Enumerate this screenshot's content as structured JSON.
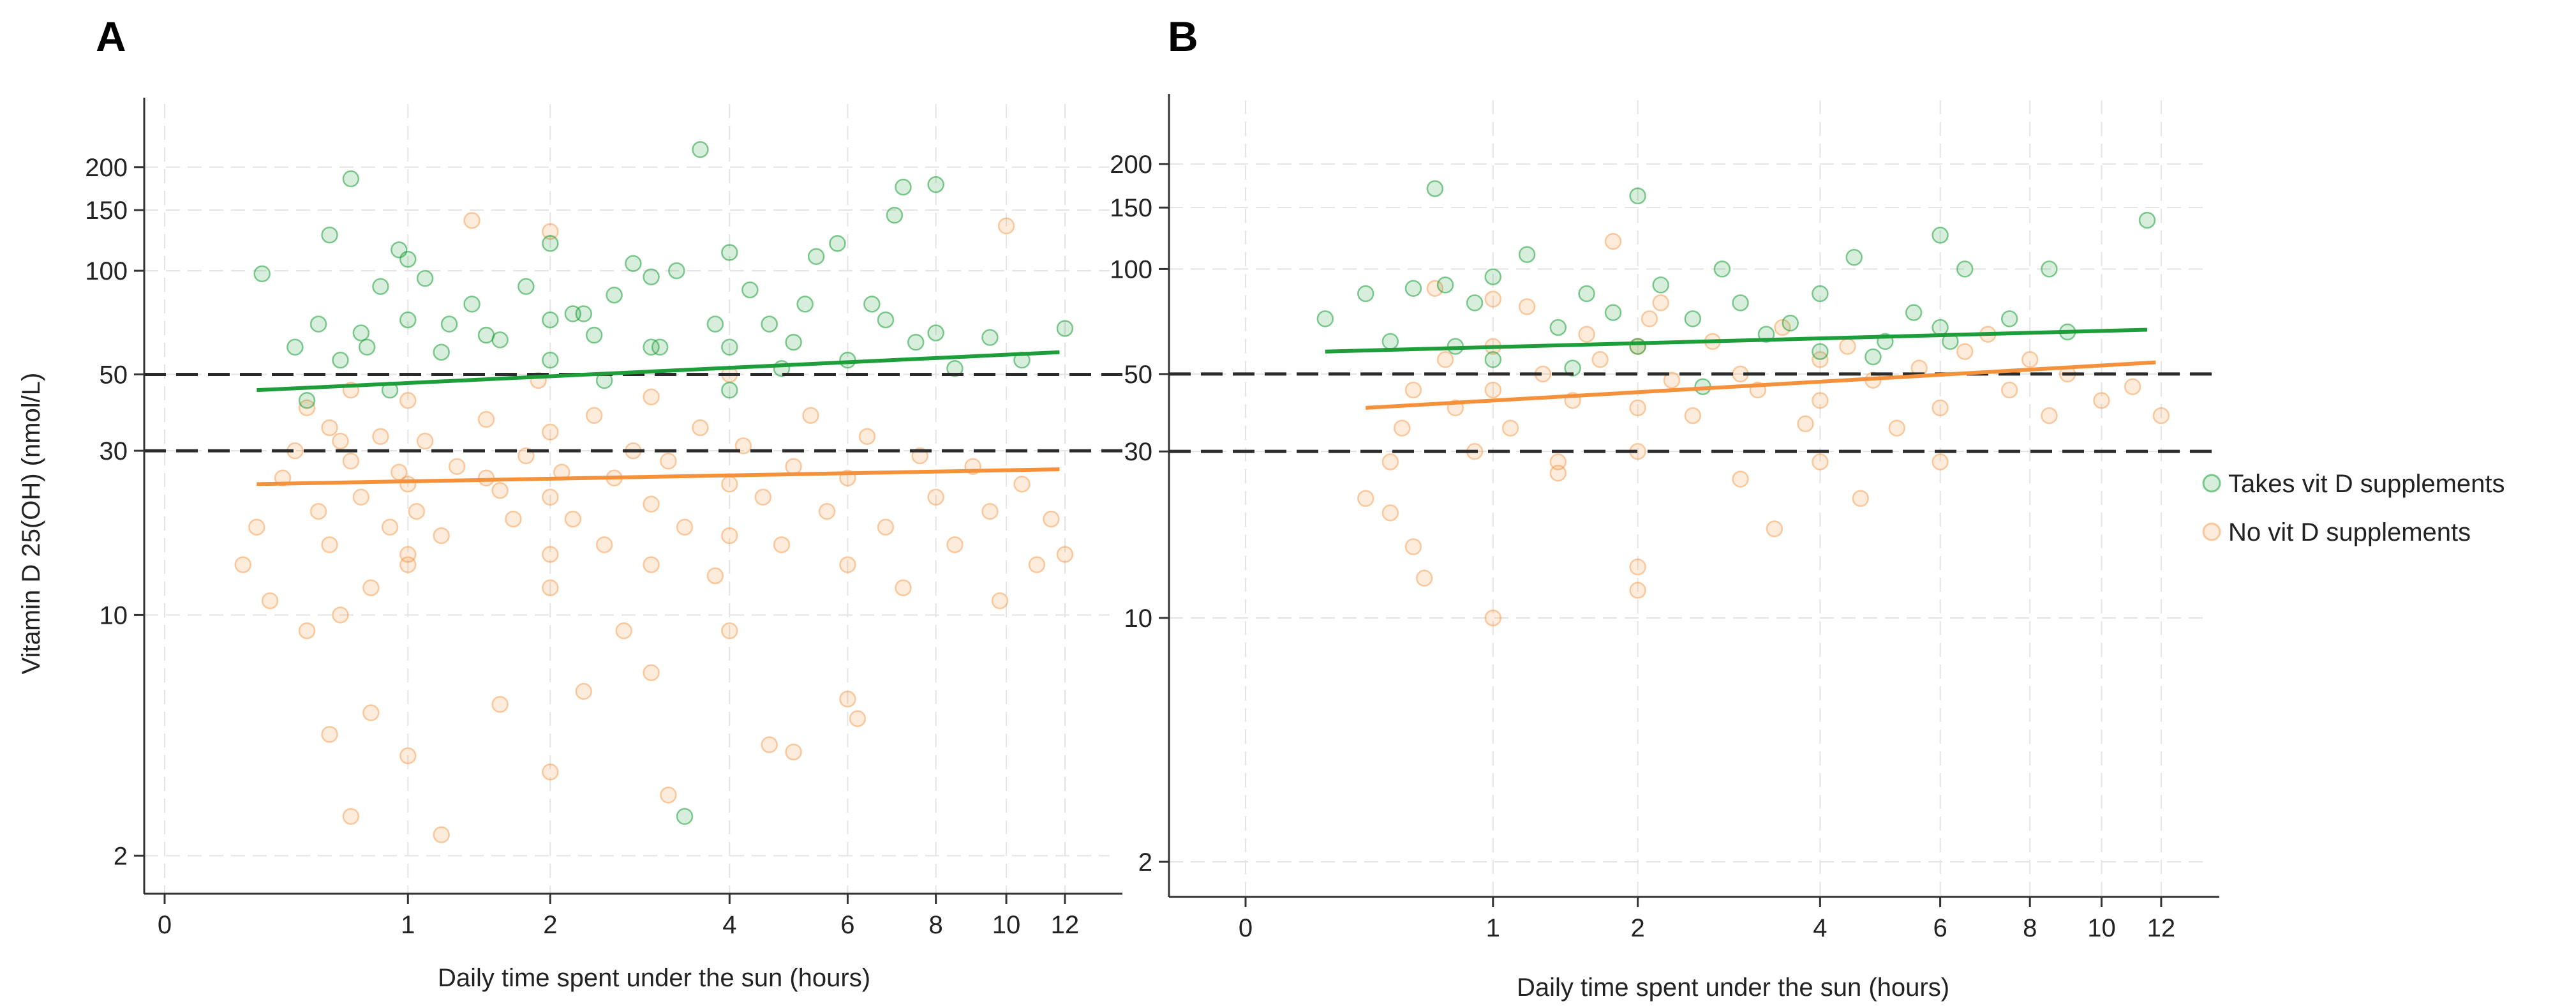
{
  "colors": {
    "supplements": "#1e9e3a",
    "no_supplements": "#f5913a",
    "supplements_point_fill": "rgba(30,158,58,0.18)",
    "supplements_point_stroke": "rgba(30,158,58,0.55)",
    "no_supplements_point_fill": "rgba(245,145,58,0.18)",
    "no_supplements_point_stroke": "rgba(245,145,58,0.45)"
  },
  "legend": [
    {
      "key": "supplements",
      "label": "Takes vit D supplements"
    },
    {
      "key": "no_supplements",
      "label": "No vit D supplements"
    }
  ],
  "chart_data": [
    {
      "panel": "A",
      "type": "scatter",
      "xlabel": "Daily time spent under the sun (hours)",
      "ylabel": "Vitamin D 25(OH) (nmol/L)",
      "x_scale": "log(x+1)",
      "y_scale": "log",
      "xlim": [
        0,
        13.5
      ],
      "ylim": [
        1.8,
        280
      ],
      "x_ticks": [
        "0",
        "1",
        "2",
        "4",
        "6",
        "8",
        "10",
        "12"
      ],
      "y_ticks": [
        "2",
        "10",
        "30",
        "50",
        "100",
        "150",
        "200"
      ],
      "reference_lines_y": [
        50,
        30
      ],
      "grid": true,
      "fit_lines": [
        {
          "series": "supplements",
          "x": [
            0.3,
            11.8
          ],
          "y": [
            45,
            58
          ]
        },
        {
          "series": "no_supplements",
          "x": [
            0.3,
            11.8
          ],
          "y": [
            24,
            26.5
          ]
        }
      ],
      "series": [
        {
          "key": "supplements",
          "name": "Takes vit D supplements",
          "x": [
            0.32,
            0.45,
            0.55,
            0.6,
            0.65,
            0.7,
            0.78,
            0.85,
            0.95,
            1.0,
            1.0,
            1.1,
            1.25,
            1.4,
            1.6,
            1.8,
            2.0,
            2.0,
            2.0,
            2.2,
            2.4,
            2.6,
            2.8,
            3.0,
            3.0,
            3.3,
            3.6,
            3.8,
            4.0,
            4.0,
            4.0,
            4.3,
            4.6,
            5.0,
            5.4,
            5.8,
            6.0,
            6.5,
            7.0,
            7.2,
            7.5,
            8.0,
            8.0,
            8.5,
            9.5,
            10.5,
            12.0,
            3.4,
            2.5,
            1.5,
            0.9,
            4.8,
            5.2,
            6.8,
            0.5,
            3.1,
            2.3,
            1.2,
            0.75
          ],
          "y": [
            98,
            60,
            70,
            127,
            55,
            185,
            60,
            90,
            115,
            108,
            72,
            95,
            70,
            80,
            63,
            90,
            72,
            120,
            55,
            75,
            65,
            85,
            105,
            96,
            60,
            100,
            225,
            70,
            113,
            60,
            45,
            88,
            70,
            62,
            110,
            120,
            55,
            80,
            145,
            175,
            62,
            178,
            66,
            52,
            64,
            55,
            68,
            2.6,
            48,
            65,
            45,
            52,
            80,
            72,
            42,
            60,
            75,
            58,
            66
          ]
        },
        {
          "key": "no_supplements",
          "name": "No vit D supplements",
          "x": [
            0.25,
            0.3,
            0.35,
            0.4,
            0.45,
            0.5,
            0.5,
            0.55,
            0.6,
            0.6,
            0.65,
            0.7,
            0.7,
            0.75,
            0.8,
            0.85,
            0.9,
            0.95,
            1.0,
            1.0,
            1.0,
            1.0,
            1.05,
            1.1,
            1.2,
            1.3,
            1.4,
            1.5,
            1.6,
            1.7,
            1.8,
            1.9,
            2.0,
            2.0,
            2.0,
            2.0,
            2.0,
            2.1,
            2.2,
            2.4,
            2.5,
            2.6,
            2.8,
            3.0,
            3.0,
            3.0,
            3.2,
            3.4,
            3.6,
            3.8,
            4.0,
            4.0,
            4.0,
            4.0,
            4.2,
            4.5,
            4.8,
            5.0,
            5.3,
            5.6,
            6.0,
            6.0,
            6.4,
            6.8,
            7.2,
            7.6,
            8.0,
            8.5,
            9.0,
            9.5,
            10.0,
            10.5,
            11.0,
            11.5,
            12.0,
            0.6,
            0.8,
            1.0,
            1.6,
            2.0,
            2.3,
            3.2,
            4.6,
            6.2,
            0.7,
            1.2,
            5.0,
            6.0,
            3.0,
            2.7,
            0.65,
            9.8,
            1.5
          ],
          "y": [
            14,
            18,
            11,
            25,
            30,
            9,
            40,
            20,
            16,
            35,
            10,
            28,
            45,
            22,
            12,
            33,
            18,
            26,
            15,
            24,
            42,
            14,
            20,
            32,
            17,
            27,
            140,
            37,
            23,
            19,
            29,
            48,
            15,
            22,
            34,
            12,
            130,
            26,
            19,
            38,
            16,
            25,
            30,
            14,
            21,
            43,
            28,
            18,
            35,
            13,
            24,
            17,
            50,
            9,
            31,
            22,
            16,
            27,
            38,
            20,
            14,
            25,
            33,
            18,
            12,
            29,
            22,
            16,
            27,
            20,
            135,
            24,
            14,
            19,
            15,
            4.5,
            5.2,
            3.9,
            5.5,
            3.5,
            6.0,
            3.0,
            4.2,
            5.0,
            2.6,
            2.3,
            4.0,
            5.7,
            6.8,
            9,
            32,
            11,
            25
          ]
        }
      ]
    },
    {
      "panel": "B",
      "type": "scatter",
      "xlabel": "Daily time spent under the sun (hours)",
      "ylabel": "",
      "x_scale": "log(x+1)",
      "y_scale": "log",
      "xlim": [
        0,
        13.5
      ],
      "ylim": [
        1.8,
        280
      ],
      "x_ticks": [
        "0",
        "1",
        "2",
        "4",
        "6",
        "8",
        "10",
        "12"
      ],
      "y_ticks": [
        "2",
        "10",
        "30",
        "50",
        "100",
        "150",
        "200"
      ],
      "reference_lines_y": [
        50,
        30
      ],
      "grid": true,
      "fit_lines": [
        {
          "series": "supplements",
          "x": [
            0.25,
            11.5
          ],
          "y": [
            58,
            67
          ]
        },
        {
          "series": "no_supplements",
          "x": [
            0.4,
            11.8
          ],
          "y": [
            40,
            54
          ]
        }
      ],
      "series": [
        {
          "key": "supplements",
          "name": "Takes vit D supplements",
          "x": [
            0.25,
            0.4,
            0.5,
            0.6,
            0.7,
            0.8,
            0.9,
            1.0,
            1.0,
            1.2,
            1.4,
            1.6,
            1.8,
            2.0,
            2.0,
            2.2,
            2.5,
            2.8,
            3.0,
            3.3,
            3.6,
            4.0,
            4.0,
            4.5,
            5.0,
            5.5,
            6.0,
            6.0,
            6.5,
            7.5,
            8.5,
            9.0,
            11.5,
            0.75,
            1.5,
            2.6,
            4.8,
            6.2
          ],
          "y": [
            72,
            85,
            62,
            88,
            170,
            60,
            80,
            95,
            55,
            110,
            68,
            85,
            75,
            162,
            60,
            90,
            72,
            100,
            80,
            65,
            70,
            58,
            85,
            108,
            62,
            75,
            125,
            68,
            100,
            72,
            100,
            66,
            138,
            90,
            52,
            46,
            56,
            62
          ]
        },
        {
          "key": "no_supplements",
          "name": "No vit D supplements",
          "x": [
            0.4,
            0.5,
            0.55,
            0.6,
            0.65,
            0.7,
            0.75,
            0.8,
            0.9,
            1.0,
            1.0,
            1.0,
            1.1,
            1.2,
            1.3,
            1.4,
            1.5,
            1.6,
            1.7,
            1.8,
            2.0,
            2.0,
            2.0,
            2.0,
            2.1,
            2.3,
            2.5,
            2.7,
            3.0,
            3.0,
            3.2,
            3.5,
            3.8,
            4.0,
            4.0,
            4.0,
            4.4,
            4.8,
            5.2,
            5.6,
            6.0,
            6.0,
            6.5,
            7.0,
            7.5,
            8.0,
            8.5,
            9.0,
            10.0,
            11.0,
            12.0,
            0.6,
            1.0,
            2.0,
            1.4,
            3.4,
            0.5,
            2.2,
            4.6
          ],
          "y": [
            22,
            20,
            35,
            45,
            13,
            88,
            55,
            40,
            30,
            60,
            45,
            10,
            35,
            78,
            50,
            28,
            42,
            65,
            55,
            120,
            40,
            60,
            14,
            30,
            72,
            48,
            38,
            62,
            50,
            25,
            45,
            68,
            36,
            55,
            42,
            28,
            60,
            48,
            35,
            52,
            40,
            28,
            58,
            65,
            45,
            55,
            38,
            50,
            42,
            46,
            38,
            16,
            82,
            12,
            26,
            18,
            28,
            80,
            22
          ]
        }
      ]
    }
  ]
}
